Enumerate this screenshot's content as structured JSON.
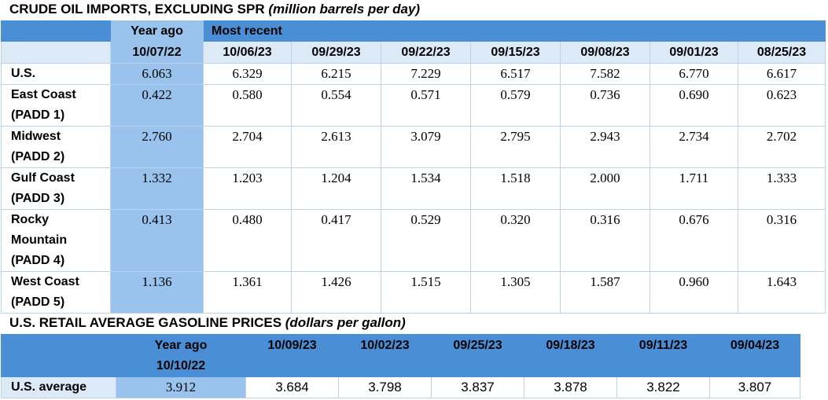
{
  "crude": {
    "title": "CRUDE OIL IMPORTS, EXCLUDING SPR",
    "subtitle": "(million barrels per day)",
    "year_ago_label": "Year ago",
    "most_recent_label": "Most recent",
    "dates": [
      "10/07/22",
      "10/06/23",
      "09/29/23",
      "09/22/23",
      "09/15/23",
      "09/08/23",
      "09/01/23",
      "08/25/23"
    ],
    "rows": [
      {
        "label_lines": [
          "U.S."
        ],
        "values": [
          "6.063",
          "6.329",
          "6.215",
          "7.229",
          "6.517",
          "7.582",
          "6.770",
          "6.617"
        ]
      },
      {
        "label_lines": [
          "East Coast",
          "(PADD 1)"
        ],
        "values": [
          "0.422",
          "0.580",
          "0.554",
          "0.571",
          "0.579",
          "0.736",
          "0.690",
          "0.623"
        ]
      },
      {
        "label_lines": [
          "Midwest",
          "(PADD 2)"
        ],
        "values": [
          "2.760",
          "2.704",
          "2.613",
          "3.079",
          "2.795",
          "2.943",
          "2.734",
          "2.702"
        ]
      },
      {
        "label_lines": [
          "Gulf Coast",
          "(PADD 3)"
        ],
        "values": [
          "1.332",
          "1.203",
          "1.204",
          "1.534",
          "1.518",
          "2.000",
          "1.711",
          "1.333"
        ]
      },
      {
        "label_lines": [
          "Rocky",
          "Mountain",
          "(PADD 4)"
        ],
        "values": [
          "0.413",
          "0.480",
          "0.417",
          "0.529",
          "0.320",
          "0.316",
          "0.676",
          "0.316"
        ]
      },
      {
        "label_lines": [
          "West Coast",
          "(PADD 5)"
        ],
        "values": [
          "1.136",
          "1.361",
          "1.426",
          "1.515",
          "1.305",
          "1.587",
          "0.960",
          "1.643"
        ]
      }
    ]
  },
  "gasoline": {
    "title": "U.S. RETAIL AVERAGE GASOLINE PRICES",
    "subtitle": "(dollars per gallon)",
    "year_ago_label": "Year ago",
    "year_ago_date": "10/10/22",
    "dates": [
      "10/09/23",
      "10/02/23",
      "09/25/23",
      "09/18/23",
      "09/11/23",
      "09/04/23"
    ],
    "row_label": "U.S. average",
    "year_ago_value": "3.912",
    "values": [
      "3.684",
      "3.798",
      "3.837",
      "3.878",
      "3.822",
      "3.807"
    ]
  },
  "colors": {
    "header_blue": "#4a8fd6",
    "year_ago_blue": "#99c3ec",
    "light_blue": "#dce9f7"
  }
}
